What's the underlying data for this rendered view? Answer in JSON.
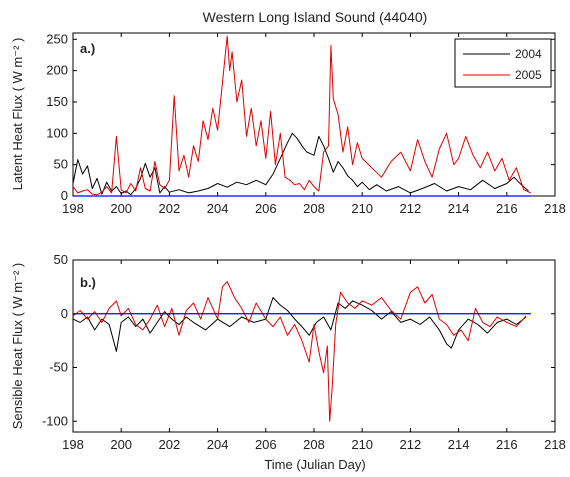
{
  "figure": {
    "title": "Western Long Island Sound (44040)",
    "xlabel": "Time (Julian Day)"
  },
  "legend": {
    "entries": [
      {
        "label": "2004",
        "color": "#000000"
      },
      {
        "label": "2005",
        "color": "#e00000"
      }
    ]
  },
  "chart_data": [
    {
      "type": "line",
      "panel_label": "a.)",
      "ylabel": "Latent Heat Flux ( W m⁻² )",
      "xlim": [
        198,
        218
      ],
      "ylim": [
        0,
        260
      ],
      "xticks": [
        "198",
        "200",
        "202",
        "204",
        "206",
        "208",
        "210",
        "212",
        "214",
        "216",
        "218"
      ],
      "yticks": [
        "0",
        "50",
        "100",
        "150",
        "200",
        "250"
      ],
      "legend_position": "top-right",
      "reference_line": {
        "y": 0,
        "color": "#0000ff"
      },
      "series": [
        {
          "name": "2004",
          "color": "#000000",
          "x": [
            198.0,
            198.2,
            198.4,
            198.6,
            198.8,
            199.0,
            199.2,
            199.4,
            199.6,
            199.8,
            200.0,
            200.2,
            200.4,
            200.6,
            200.8,
            201.0,
            201.2,
            201.4,
            201.6,
            201.8,
            202.0,
            202.4,
            202.8,
            203.2,
            203.6,
            204.0,
            204.4,
            204.8,
            205.2,
            205.6,
            206.0,
            206.3,
            206.6,
            206.9,
            207.1,
            207.3,
            207.5,
            207.7,
            208.0,
            208.2,
            208.4,
            208.6,
            208.8,
            209.0,
            209.2,
            209.4,
            209.6,
            209.8,
            210.0,
            210.3,
            210.6,
            211.0,
            211.5,
            212.0,
            212.5,
            213.0,
            213.5,
            214.0,
            214.5,
            215.0,
            215.5,
            216.0,
            216.3,
            216.6,
            216.9
          ],
          "y": [
            20,
            58,
            35,
            48,
            12,
            28,
            3,
            22,
            8,
            15,
            4,
            8,
            2,
            12,
            28,
            52,
            30,
            45,
            5,
            15,
            6,
            10,
            5,
            8,
            12,
            20,
            14,
            22,
            18,
            25,
            18,
            35,
            60,
            85,
            100,
            92,
            80,
            70,
            65,
            95,
            80,
            60,
            38,
            55,
            45,
            32,
            25,
            15,
            22,
            10,
            18,
            8,
            15,
            5,
            12,
            20,
            8,
            15,
            10,
            25,
            12,
            20,
            30,
            18,
            8
          ]
        },
        {
          "name": "2005",
          "color": "#e00000",
          "x": [
            198.0,
            198.2,
            198.4,
            198.6,
            198.8,
            199.0,
            199.2,
            199.4,
            199.6,
            199.8,
            200.0,
            200.2,
            200.4,
            200.6,
            200.8,
            201.0,
            201.2,
            201.4,
            201.6,
            201.8,
            202.0,
            202.2,
            202.4,
            202.6,
            202.8,
            203.0,
            203.2,
            203.4,
            203.6,
            203.8,
            204.0,
            204.2,
            204.4,
            204.5,
            204.6,
            204.8,
            205.0,
            205.2,
            205.4,
            205.6,
            205.8,
            206.0,
            206.2,
            206.4,
            206.6,
            206.8,
            207.0,
            207.2,
            207.4,
            207.6,
            207.8,
            208.0,
            208.2,
            208.4,
            208.6,
            208.7,
            208.8,
            209.0,
            209.2,
            209.4,
            209.6,
            209.8,
            210.0,
            210.4,
            210.8,
            211.2,
            211.6,
            212.0,
            212.3,
            212.6,
            212.9,
            213.2,
            213.5,
            213.8,
            214.0,
            214.3,
            214.6,
            214.9,
            215.2,
            215.5,
            215.8,
            216.1,
            216.4,
            216.7,
            217.0
          ],
          "y": [
            15,
            5,
            8,
            10,
            3,
            2,
            6,
            15,
            5,
            95,
            10,
            5,
            20,
            8,
            45,
            12,
            8,
            55,
            18,
            12,
            25,
            160,
            40,
            65,
            30,
            80,
            55,
            120,
            90,
            140,
            105,
            180,
            255,
            200,
            230,
            150,
            185,
            95,
            140,
            80,
            120,
            60,
            135,
            50,
            100,
            30,
            25,
            18,
            20,
            10,
            25,
            15,
            8,
            70,
            80,
            240,
            155,
            130,
            70,
            110,
            50,
            85,
            60,
            45,
            30,
            55,
            70,
            40,
            90,
            55,
            30,
            75,
            100,
            50,
            60,
            95,
            65,
            45,
            70,
            40,
            60,
            25,
            45,
            10,
            5
          ]
        }
      ]
    },
    {
      "type": "line",
      "panel_label": "b.)",
      "ylabel": "Sensible Heat Flux ( W m⁻² )",
      "xlim": [
        198,
        218
      ],
      "ylim": [
        -110,
        50
      ],
      "xticks": [
        "198",
        "200",
        "202",
        "204",
        "206",
        "208",
        "210",
        "212",
        "214",
        "216",
        "218"
      ],
      "yticks": [
        "-100",
        "-50",
        "0",
        "50"
      ],
      "reference_line": {
        "y": 0,
        "color": "#0000ff"
      },
      "series": [
        {
          "name": "2004",
          "color": "#000000",
          "x": [
            198.0,
            198.3,
            198.6,
            198.9,
            199.2,
            199.5,
            199.8,
            200.0,
            200.3,
            200.6,
            200.9,
            201.2,
            201.5,
            201.8,
            202.1,
            202.4,
            202.7,
            203.0,
            203.5,
            204.0,
            204.5,
            205.0,
            205.5,
            206.0,
            206.3,
            206.6,
            206.9,
            207.2,
            207.5,
            207.8,
            208.1,
            208.4,
            208.7,
            209.0,
            209.3,
            209.6,
            210.0,
            210.4,
            210.8,
            211.2,
            211.6,
            212.0,
            212.4,
            212.8,
            213.2,
            213.5,
            213.7,
            214.0,
            214.4,
            214.8,
            215.2,
            215.6,
            216.0,
            216.4,
            216.8
          ],
          "y": [
            -5,
            -8,
            -3,
            -15,
            -5,
            -10,
            -35,
            -8,
            -3,
            -12,
            -5,
            -18,
            -8,
            2,
            -5,
            -10,
            -3,
            -8,
            -15,
            -5,
            -12,
            -3,
            -8,
            -5,
            15,
            8,
            3,
            -5,
            -12,
            -20,
            -8,
            -3,
            -15,
            10,
            5,
            12,
            8,
            3,
            -5,
            2,
            -8,
            -5,
            -10,
            -3,
            -15,
            -28,
            -32,
            -15,
            -5,
            -10,
            -18,
            -8,
            -5,
            -10,
            -3
          ]
        },
        {
          "name": "2005",
          "color": "#e00000",
          "x": [
            198.0,
            198.3,
            198.6,
            198.9,
            199.2,
            199.5,
            199.8,
            200.0,
            200.3,
            200.6,
            200.9,
            201.2,
            201.5,
            201.8,
            202.1,
            202.4,
            202.7,
            203.0,
            203.3,
            203.6,
            204.0,
            204.2,
            204.4,
            204.7,
            205.0,
            205.3,
            205.6,
            206.0,
            206.3,
            206.6,
            206.9,
            207.2,
            207.5,
            207.8,
            208.0,
            208.2,
            208.4,
            208.55,
            208.65,
            208.75,
            208.9,
            209.1,
            209.4,
            209.7,
            210.0,
            210.4,
            210.8,
            211.2,
            211.6,
            212.0,
            212.3,
            212.6,
            212.9,
            213.2,
            213.5,
            213.8,
            214.1,
            214.4,
            214.7,
            215.0,
            215.3,
            215.6,
            216.0,
            216.4,
            216.8
          ],
          "y": [
            -2,
            3,
            -5,
            2,
            -8,
            5,
            12,
            -2,
            5,
            -10,
            -15,
            -5,
            8,
            -12,
            5,
            -20,
            3,
            10,
            -5,
            15,
            -5,
            25,
            30,
            15,
            5,
            -8,
            10,
            -5,
            -12,
            -3,
            -20,
            -10,
            -25,
            -45,
            -10,
            -35,
            -55,
            -30,
            -100,
            -70,
            -10,
            20,
            10,
            5,
            12,
            8,
            15,
            3,
            -5,
            20,
            25,
            10,
            18,
            -5,
            -10,
            -20,
            -15,
            -25,
            5,
            -8,
            -12,
            -3,
            -8,
            -12,
            -2
          ]
        }
      ]
    }
  ]
}
